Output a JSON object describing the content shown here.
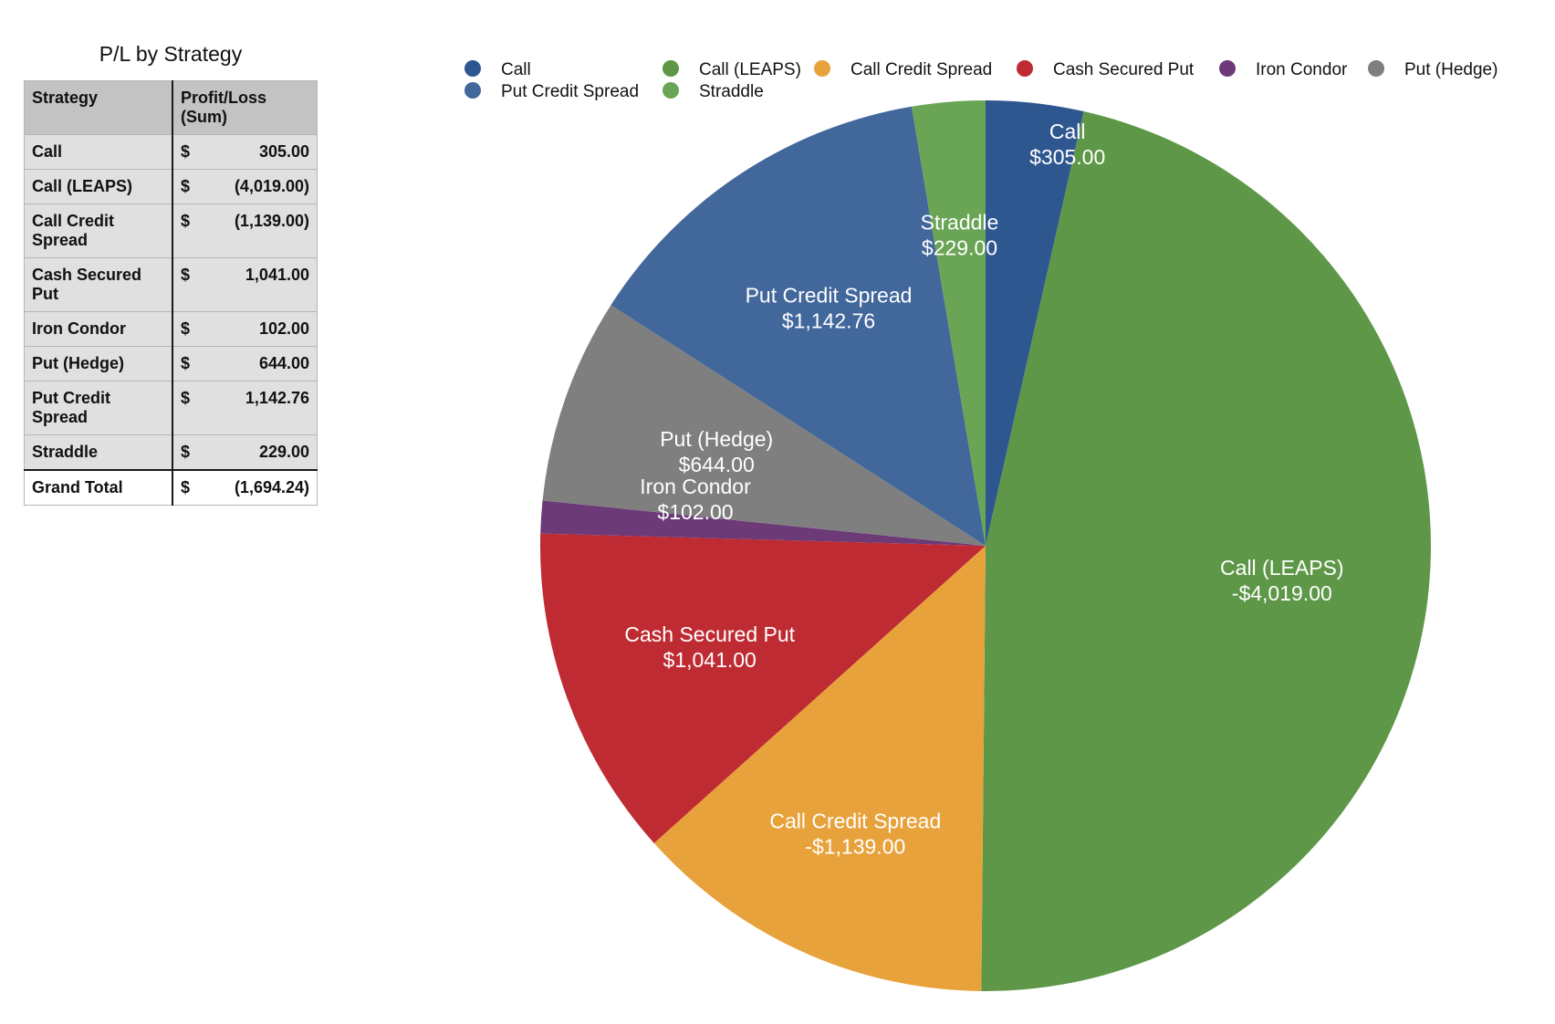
{
  "table": {
    "title": "P/L by Strategy",
    "headers": [
      "Strategy",
      "Profit/Loss (Sum)"
    ],
    "rows": [
      {
        "strategy": "Call",
        "currency": "$",
        "value": "305.00"
      },
      {
        "strategy": "Call (LEAPS)",
        "currency": "$",
        "value": "(4,019.00)"
      },
      {
        "strategy": "Call Credit Spread",
        "currency": "$",
        "value": "(1,139.00)"
      },
      {
        "strategy": "Cash Secured Put",
        "currency": "$",
        "value": "1,041.00"
      },
      {
        "strategy": "Iron Condor",
        "currency": "$",
        "value": "102.00"
      },
      {
        "strategy": "Put (Hedge)",
        "currency": "$",
        "value": "644.00"
      },
      {
        "strategy": "Put Credit Spread",
        "currency": "$",
        "value": "1,142.76"
      },
      {
        "strategy": "Straddle",
        "currency": "$",
        "value": "229.00"
      }
    ],
    "total": {
      "strategy": "Grand Total",
      "currency": "$",
      "value": "(1,694.24)"
    }
  },
  "chart_data": {
    "type": "pie",
    "title": "",
    "categories": [
      "Call",
      "Call (LEAPS)",
      "Call Credit Spread",
      "Cash Secured Put",
      "Iron Condor",
      "Put (Hedge)",
      "Put Credit Spread",
      "Straddle"
    ],
    "values": [
      305.0,
      -4019.0,
      -1139.0,
      1041.0,
      102.0,
      644.0,
      1142.76,
      229.0
    ],
    "data_labels": [
      "$305.00",
      "-$4,019.00",
      "-$1,139.00",
      "$1,041.00",
      "$102.00",
      "$644.00",
      "$1,142.76",
      "$229.00"
    ],
    "colors": [
      "#2e5790",
      "#5e9748",
      "#e8a23b",
      "#bf2b32",
      "#6d3a78",
      "#7f7f7f",
      "#41679b",
      "#6aa556"
    ],
    "legend_position": "top",
    "slice_size": "absolute value"
  }
}
